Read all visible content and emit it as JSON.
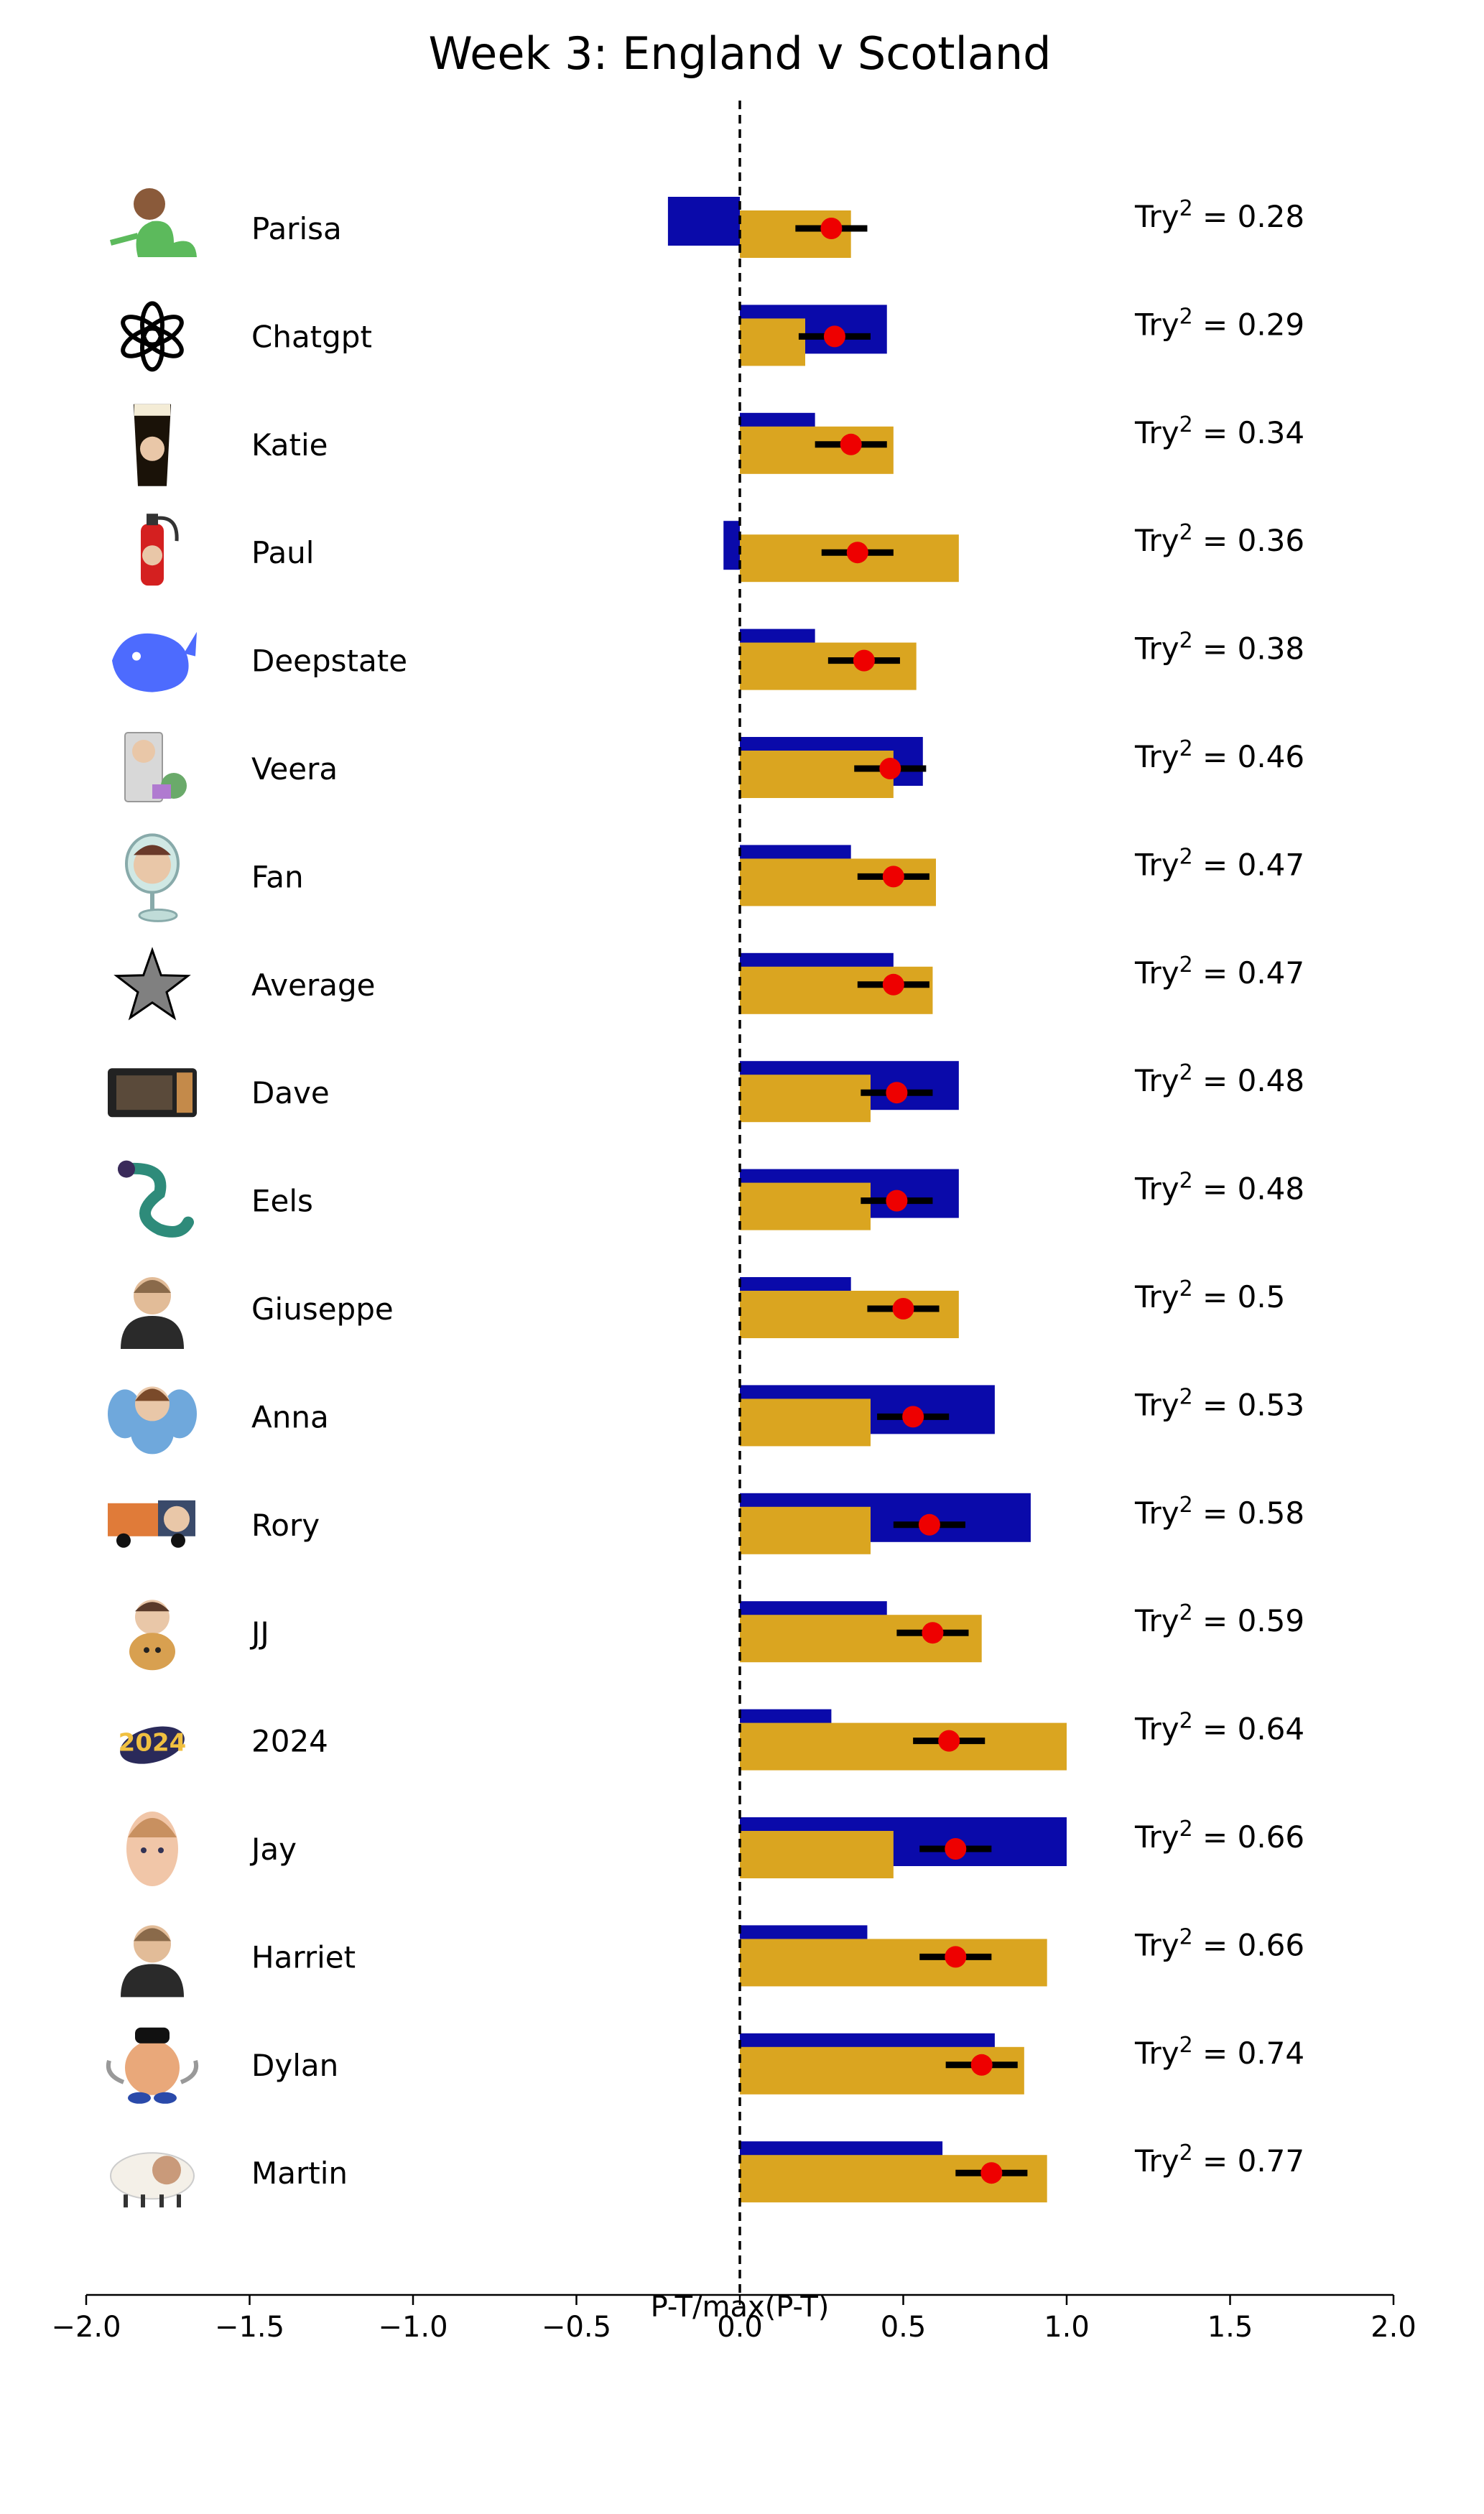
{
  "chart_data": {
    "type": "bar",
    "title": "Week 3: England v Scotland",
    "xlabel": "P-T/max(P-T)",
    "xlim": [
      -2.0,
      2.0
    ],
    "xticks": [
      "−2.0",
      "−1.5",
      "−1.0",
      "−0.5",
      "0.0",
      "0.5",
      "1.0",
      "1.5",
      "2.0"
    ],
    "xtick_values": [
      -2.0,
      -1.5,
      -1.0,
      -0.5,
      0.0,
      0.5,
      1.0,
      1.5,
      2.0
    ],
    "reference_line": {
      "x": 0.0,
      "style": "dashed"
    },
    "score_prefix": "Try",
    "score_exponent": "2",
    "colors": {
      "blue_bar": "#0a0aaa",
      "gold_bar": "#daa520",
      "marker": "#ee0000",
      "errorbar": "#000000"
    },
    "categories": [
      "Parisa",
      "Chatgpt",
      "Katie",
      "Paul",
      "Deepstate",
      "Veera",
      "Fan",
      "Average",
      "Dave",
      "Eels",
      "Giuseppe",
      "Anna",
      "Rory",
      "JJ",
      "2024",
      "Jay",
      "Harriet",
      "Dylan",
      "Martin"
    ],
    "icons": [
      "dinosaur-icon",
      "openai-logo-icon",
      "pint-glass-icon",
      "fire-extinguisher-icon",
      "whale-icon",
      "computer-tower-icon",
      "desk-lamp-icon",
      "star-icon",
      "microwave-icon",
      "eel-icon",
      "portrait-icon",
      "elephant-icon",
      "truck-icon",
      "portrait-with-dog-icon",
      "rugby-ball-2024-icon",
      "face-icon",
      "portrait-icon",
      "potato-head-icon",
      "sheep-icon"
    ],
    "series": [
      {
        "name": "blue",
        "values": [
          -0.22,
          0.45,
          0.23,
          -0.05,
          0.23,
          0.56,
          0.34,
          0.47,
          0.67,
          0.67,
          0.34,
          0.78,
          0.89,
          0.45,
          0.28,
          1.0,
          0.39,
          0.78,
          0.62
        ]
      },
      {
        "name": "gold",
        "values": [
          0.34,
          0.2,
          0.47,
          0.67,
          0.54,
          0.47,
          0.6,
          0.59,
          0.4,
          0.4,
          0.67,
          0.4,
          0.4,
          0.74,
          1.0,
          0.47,
          0.94,
          0.87,
          0.94
        ]
      },
      {
        "name": "marker",
        "values": [
          0.28,
          0.29,
          0.34,
          0.36,
          0.38,
          0.46,
          0.47,
          0.47,
          0.48,
          0.48,
          0.5,
          0.53,
          0.58,
          0.59,
          0.64,
          0.66,
          0.66,
          0.74,
          0.77
        ]
      },
      {
        "name": "error",
        "values": [
          0.11,
          0.11,
          0.11,
          0.11,
          0.11,
          0.11,
          0.11,
          0.11,
          0.11,
          0.11,
          0.11,
          0.11,
          0.11,
          0.11,
          0.11,
          0.11,
          0.11,
          0.11,
          0.11
        ]
      }
    ],
    "scores": [
      "0.28",
      "0.29",
      "0.34",
      "0.36",
      "0.38",
      "0.46",
      "0.47",
      "0.47",
      "0.48",
      "0.48",
      "0.5",
      "0.53",
      "0.58",
      "0.59",
      "0.64",
      "0.66",
      "0.66",
      "0.74",
      "0.77"
    ]
  }
}
